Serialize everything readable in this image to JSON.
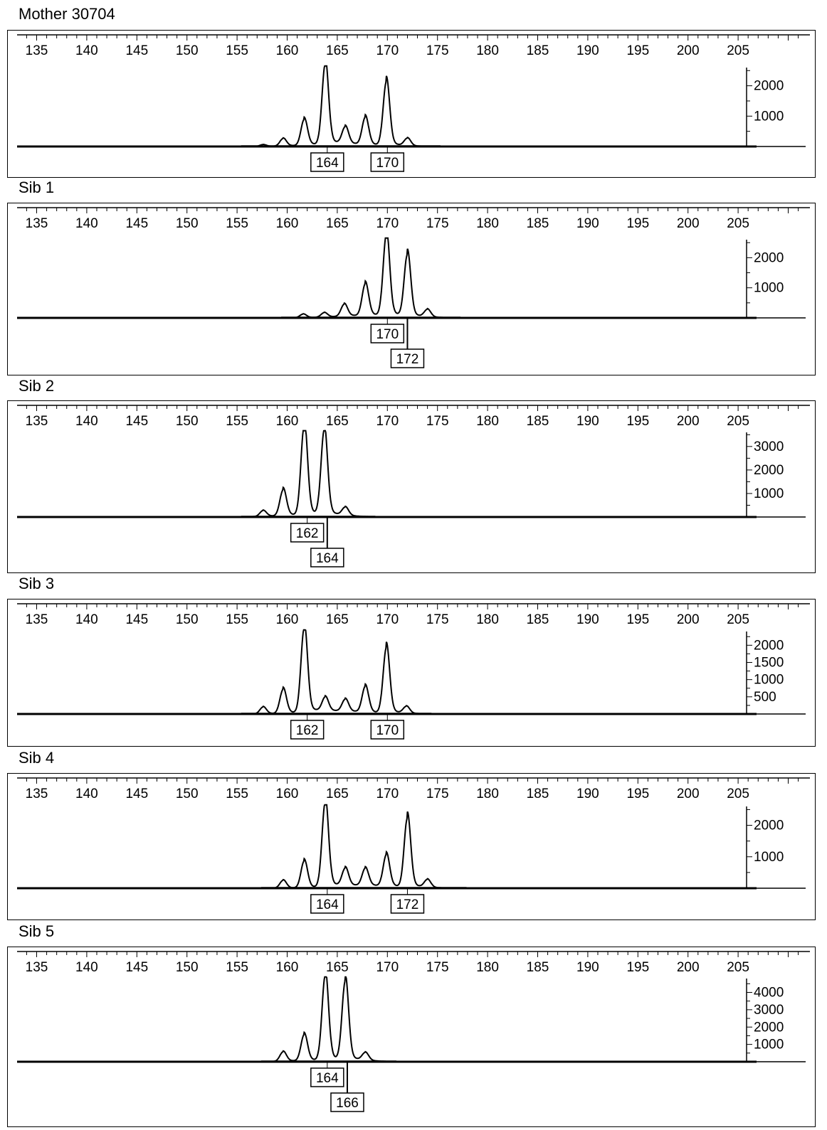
{
  "chart_data": [
    {
      "type": "line",
      "title": "Mother 30704",
      "x_ticks": [
        135,
        140,
        145,
        150,
        155,
        160,
        165,
        170,
        175,
        180,
        185,
        190,
        195,
        200,
        205
      ],
      "xlim": [
        133,
        206
      ],
      "y_ticks": [
        1000,
        2000
      ],
      "ylim": [
        0,
        2600
      ],
      "peaks": [
        {
          "x": 157.6,
          "y": 60
        },
        {
          "x": 159.6,
          "y": 250
        },
        {
          "x": 161.7,
          "y": 850
        },
        {
          "x": 163.8,
          "y": 2650
        },
        {
          "x": 165.8,
          "y": 550
        },
        {
          "x": 167.8,
          "y": 900
        },
        {
          "x": 169.9,
          "y": 2100
        },
        {
          "x": 172.0,
          "y": 250
        }
      ],
      "tail_end": 175.3,
      "allele_calls": [
        "164",
        "170"
      ]
    },
    {
      "type": "line",
      "title": "Sib 1",
      "x_ticks": [
        135,
        140,
        145,
        150,
        155,
        160,
        165,
        170,
        175,
        180,
        185,
        190,
        195,
        200,
        205
      ],
      "xlim": [
        133,
        206
      ],
      "y_ticks": [
        1000,
        2000
      ],
      "ylim": [
        0,
        2600
      ],
      "peaks": [
        {
          "x": 161.6,
          "y": 120
        },
        {
          "x": 163.7,
          "y": 150
        },
        {
          "x": 165.7,
          "y": 400
        },
        {
          "x": 167.8,
          "y": 1050
        },
        {
          "x": 169.9,
          "y": 2700
        },
        {
          "x": 172.0,
          "y": 2050
        },
        {
          "x": 174.0,
          "y": 250
        }
      ],
      "tail_end": 177.3,
      "allele_calls": [
        "170",
        "172"
      ]
    },
    {
      "type": "line",
      "title": "Sib 2",
      "x_ticks": [
        135,
        140,
        145,
        150,
        155,
        160,
        165,
        170,
        175,
        180,
        185,
        190,
        195,
        200,
        205
      ],
      "xlim": [
        133,
        206
      ],
      "y_ticks": [
        1000,
        2000,
        3000
      ],
      "ylim": [
        0,
        3600
      ],
      "peaks": [
        {
          "x": 157.6,
          "y": 250
        },
        {
          "x": 159.6,
          "y": 1100
        },
        {
          "x": 161.7,
          "y": 3800
        },
        {
          "x": 163.7,
          "y": 3600
        },
        {
          "x": 165.8,
          "y": 350
        }
      ],
      "tail_end": 168.8,
      "allele_calls": [
        "162",
        "164"
      ]
    },
    {
      "type": "line",
      "title": "Sib 3",
      "x_ticks": [
        135,
        140,
        145,
        150,
        155,
        160,
        165,
        170,
        175,
        180,
        185,
        190,
        195,
        200,
        205
      ],
      "xlim": [
        133,
        206
      ],
      "y_ticks": [
        500,
        1000,
        1500,
        2000
      ],
      "ylim": [
        0,
        2400
      ],
      "peaks": [
        {
          "x": 157.6,
          "y": 200
        },
        {
          "x": 159.6,
          "y": 700
        },
        {
          "x": 161.7,
          "y": 2450
        },
        {
          "x": 163.8,
          "y": 400
        },
        {
          "x": 165.8,
          "y": 350
        },
        {
          "x": 167.8,
          "y": 750
        },
        {
          "x": 169.9,
          "y": 1900
        },
        {
          "x": 171.9,
          "y": 200
        }
      ],
      "tail_end": 174.4,
      "allele_calls": [
        "162",
        "170"
      ]
    },
    {
      "type": "line",
      "title": "Sib 4",
      "x_ticks": [
        135,
        140,
        145,
        150,
        155,
        160,
        165,
        170,
        175,
        180,
        185,
        190,
        195,
        200,
        205
      ],
      "xlim": [
        133,
        206
      ],
      "y_ticks": [
        1000,
        2000
      ],
      "ylim": [
        0,
        2600
      ],
      "peaks": [
        {
          "x": 159.6,
          "y": 250
        },
        {
          "x": 161.7,
          "y": 850
        },
        {
          "x": 163.8,
          "y": 2700
        },
        {
          "x": 165.8,
          "y": 550
        },
        {
          "x": 167.8,
          "y": 550
        },
        {
          "x": 169.9,
          "y": 1000
        },
        {
          "x": 172.0,
          "y": 2200
        },
        {
          "x": 174.0,
          "y": 250
        }
      ],
      "tail_end": 177.9,
      "allele_calls": [
        "164",
        "172"
      ]
    },
    {
      "type": "line",
      "title": "Sib 5",
      "x_ticks": [
        135,
        140,
        145,
        150,
        155,
        160,
        165,
        170,
        175,
        180,
        185,
        190,
        195,
        200,
        205
      ],
      "xlim": [
        133,
        206
      ],
      "y_ticks": [
        1000,
        2000,
        3000,
        4000
      ],
      "ylim": [
        0,
        4800
      ],
      "peaks": [
        {
          "x": 159.6,
          "y": 550
        },
        {
          "x": 161.7,
          "y": 1500
        },
        {
          "x": 163.8,
          "y": 4900
        },
        {
          "x": 165.8,
          "y": 4550
        },
        {
          "x": 167.8,
          "y": 450
        }
      ],
      "tail_end": 170.9,
      "allele_calls": [
        "164",
        "166"
      ]
    }
  ]
}
